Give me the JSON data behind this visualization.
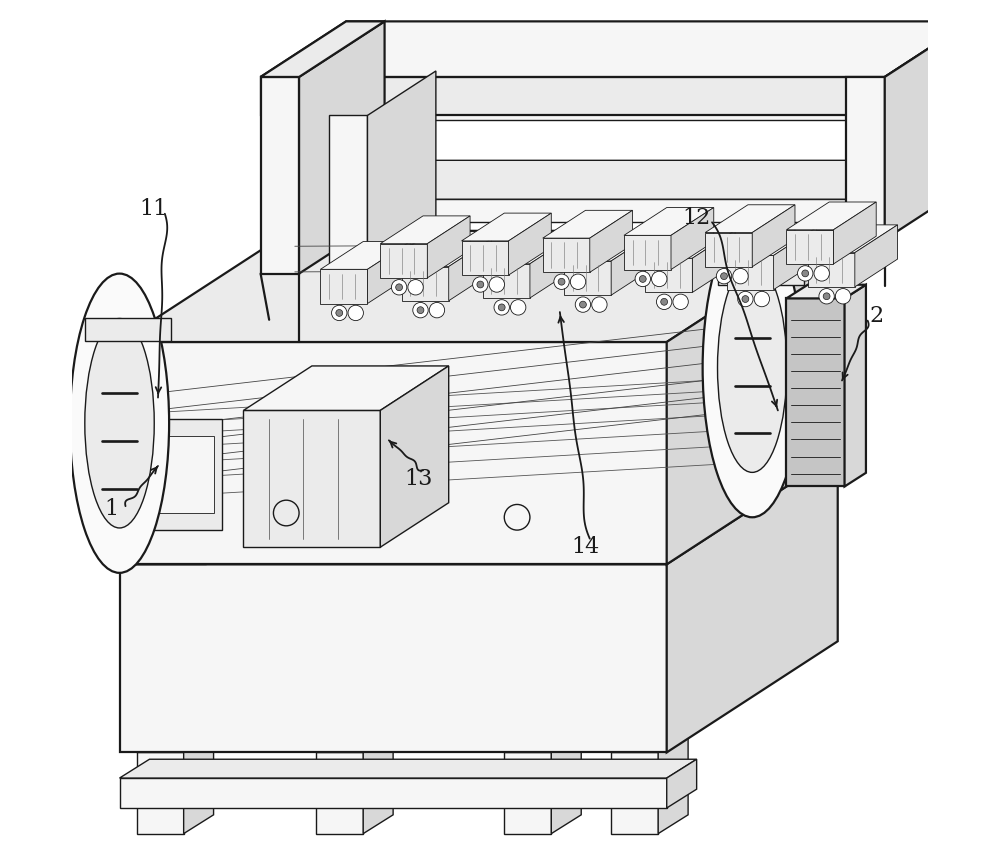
{
  "bg_color": "#ffffff",
  "line_color": "#1a1a1a",
  "label_color": "#1a1a1a",
  "lw_main": 1.6,
  "lw_detail": 1.0,
  "lw_thin": 0.6,
  "label_fontsize": 16,
  "fig_w": 10.0,
  "fig_h": 8.55,
  "dpi": 100,
  "face_light": "#f6f6f6",
  "face_mid": "#ebebeb",
  "face_dark": "#d8d8d8",
  "face_darker": "#c5c5c5",
  "face_white": "#fafafa"
}
